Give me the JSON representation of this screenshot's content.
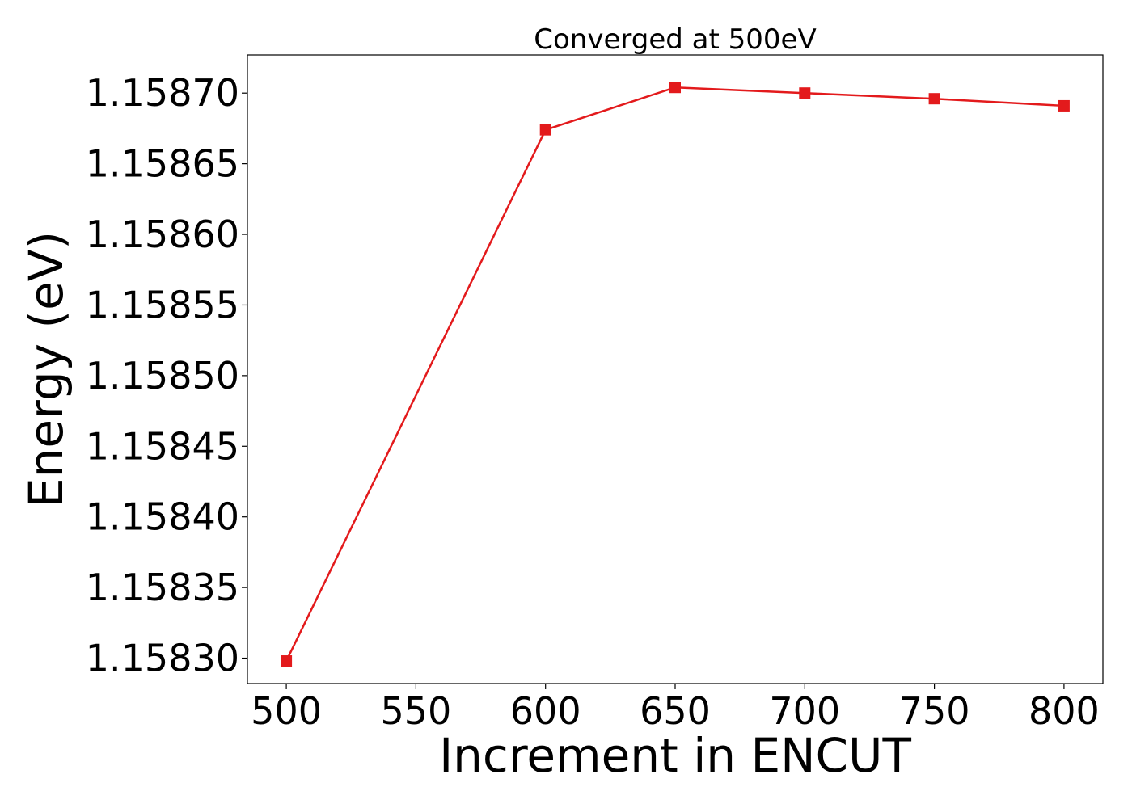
{
  "chart_data": {
    "type": "line",
    "title": "Converged at 500eV",
    "xlabel": "Increment in ENCUT",
    "ylabel": "Energy (eV)",
    "x": [
      500,
      600,
      650,
      700,
      750,
      800
    ],
    "series": [
      {
        "values": [
          1.158298,
          1.158674,
          1.158704,
          1.1587,
          1.158696,
          1.158691
        ]
      }
    ],
    "xlim": [
      485,
      815
    ],
    "ylim": [
      1.158282,
      1.158727
    ],
    "xticks": [
      500,
      550,
      600,
      650,
      700,
      750,
      800
    ],
    "xtick_labels": [
      "500",
      "550",
      "600",
      "650",
      "700",
      "750",
      "800"
    ],
    "yticks": [
      1.1583,
      1.15835,
      1.1584,
      1.15845,
      1.1585,
      1.15855,
      1.1586,
      1.15865,
      1.1587
    ],
    "ytick_labels": [
      "1.15830",
      "1.15835",
      "1.15840",
      "1.15845",
      "1.15850",
      "1.15855",
      "1.15860",
      "1.15865",
      "1.15870"
    ],
    "marker": "square",
    "grid": false,
    "colors": {
      "line": "#e31a1c",
      "axes": "#000000",
      "background": "#ffffff"
    }
  }
}
